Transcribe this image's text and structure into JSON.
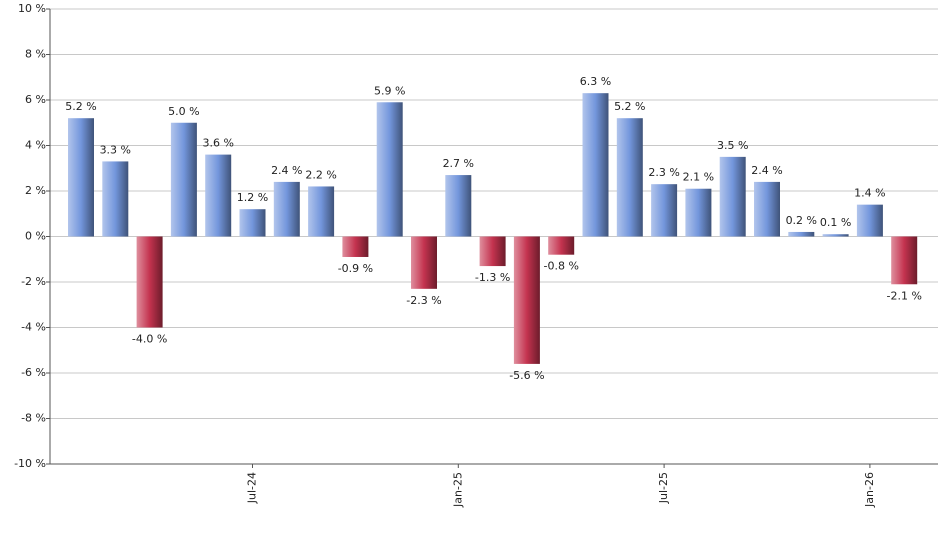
{
  "chart_data": {
    "type": "bar",
    "categories": [
      null,
      null,
      null,
      null,
      null,
      "Jul-24",
      null,
      null,
      null,
      null,
      null,
      "Jan-25",
      null,
      null,
      null,
      null,
      null,
      "Jul-25",
      null,
      null,
      null,
      null,
      null,
      "Jan-26",
      null
    ],
    "values": [
      5.2,
      3.3,
      -4.0,
      5.0,
      3.6,
      1.2,
      2.4,
      2.2,
      -0.9,
      5.9,
      -2.3,
      2.7,
      -1.3,
      -5.6,
      -0.8,
      6.3,
      5.2,
      2.3,
      2.1,
      3.5,
      2.4,
      0.2,
      0.1,
      1.4,
      -2.1
    ],
    "value_labels": [
      "5.2 %",
      "3.3 %",
      "-4.0 %",
      "5.0 %",
      "3.6 %",
      "1.2 %",
      "2.4 %",
      "2.2 %",
      "-0.9 %",
      "5.9 %",
      "-2.3 %",
      "2.7 %",
      "-1.3 %",
      "-5.6 %",
      "-0.8 %",
      "6.3 %",
      "5.2 %",
      "2.3 %",
      "2.1 %",
      "3.5 %",
      "2.4 %",
      "0.2 %",
      "0.1 %",
      "1.4 %",
      "-2.1 %"
    ],
    "positive_color": "#7396dc",
    "negative_color": "#c4334f",
    "ylim": [
      -10,
      10
    ],
    "yticks": [
      {
        "value": -10,
        "label": "-10 %"
      },
      {
        "value": -8,
        "label": "-8 %"
      },
      {
        "value": -6,
        "label": "-6 %"
      },
      {
        "value": -4,
        "label": "-4 %"
      },
      {
        "value": -2,
        "label": "-2 %"
      },
      {
        "value": 0,
        "label": "0 %"
      },
      {
        "value": 2,
        "label": "2 %"
      },
      {
        "value": 4,
        "label": "4 %"
      },
      {
        "value": 6,
        "label": "6 %"
      },
      {
        "value": 8,
        "label": "8 %"
      },
      {
        "value": 10,
        "label": "10 %"
      }
    ],
    "grid": true
  }
}
